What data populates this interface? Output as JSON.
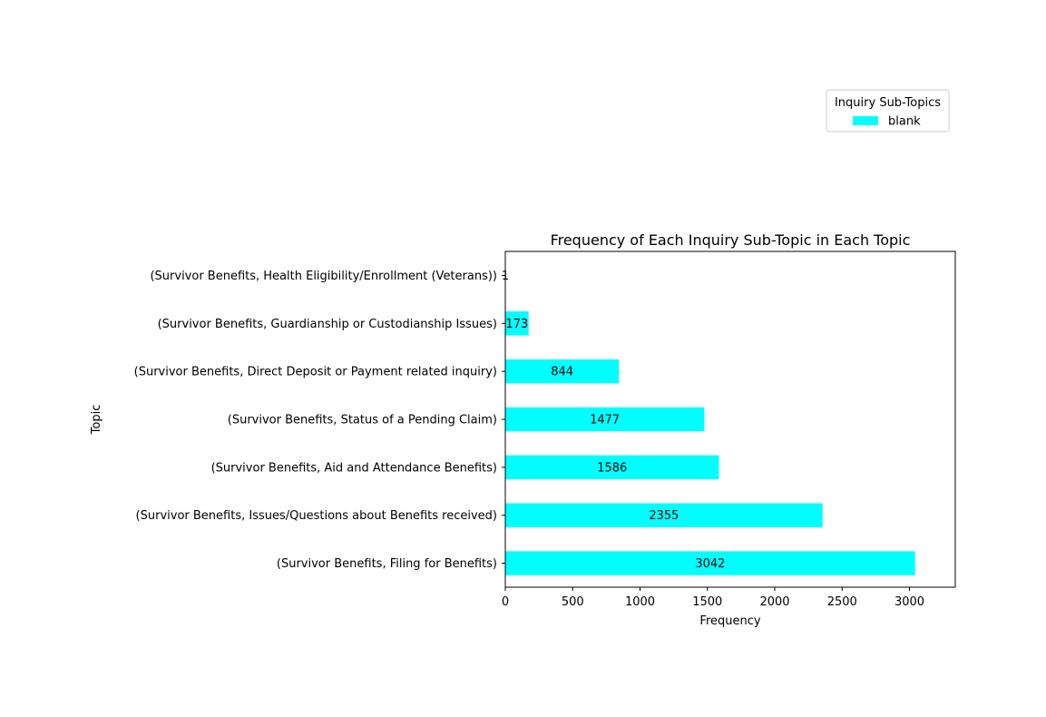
{
  "chart_data": {
    "type": "bar",
    "orientation": "horizontal",
    "title": "Frequency of Each Inquiry Sub-Topic in Each Topic",
    "xlabel": "Frequency",
    "ylabel": "Topic",
    "xlim": [
      0,
      3340
    ],
    "xticks": [
      0,
      500,
      1000,
      1500,
      2000,
      2500,
      3000
    ],
    "grid": false,
    "legend": {
      "title": "Inquiry Sub-Topics",
      "placement": "upper-right",
      "entries": [
        "blank"
      ]
    },
    "categories": [
      "(Survivor Benefits, Filing for Benefits)",
      "(Survivor Benefits, Issues/Questions about Benefits received)",
      "(Survivor Benefits, Aid and Attendance Benefits)",
      "(Survivor Benefits, Status of a Pending Claim)",
      "(Survivor Benefits, Direct Deposit or Payment related inquiry)",
      "(Survivor Benefits, Guardianship or Custodianship Issues)",
      "(Survivor Benefits, Health Eligibility/Enrollment (Veterans))"
    ],
    "series": [
      {
        "name": "blank",
        "color": "#00ffff",
        "values": [
          3042,
          2355,
          1586,
          1477,
          844,
          173,
          1
        ]
      }
    ]
  }
}
